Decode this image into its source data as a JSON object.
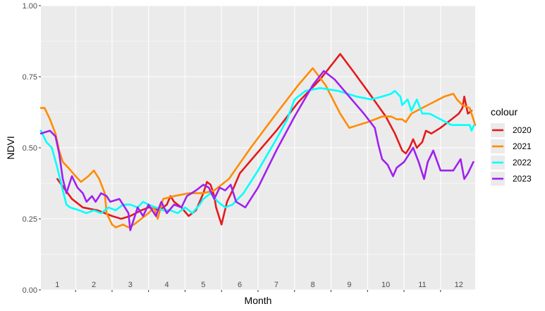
{
  "chart_data": {
    "type": "line",
    "xlabel": "Month",
    "ylabel": "NDVI",
    "xlim": [
      0.55,
      12.45
    ],
    "ylim": [
      0,
      1
    ],
    "x_tick_labels": [
      "1",
      "2",
      "3",
      "4",
      "5",
      "6",
      "7",
      "8",
      "9",
      "10",
      "11",
      "12"
    ],
    "y_ticks": [
      0,
      0.25,
      0.5,
      0.75,
      1
    ],
    "y_tick_labels": [
      "0.00",
      "0.25",
      "0.50",
      "0.75",
      "1.00"
    ],
    "grid": true,
    "panel_color": "#ebebeb",
    "legend": {
      "title": "colour",
      "placement": "right"
    },
    "series": [
      {
        "name": "2020",
        "color": "#e41a1c",
        "points": [
          [
            1.0,
            0.39
          ],
          [
            1.4,
            0.32
          ],
          [
            1.7,
            0.29
          ],
          [
            2.1,
            0.28
          ],
          [
            2.3,
            0.27
          ],
          [
            2.5,
            0.26
          ],
          [
            2.75,
            0.25
          ],
          [
            3.0,
            0.26
          ],
          [
            3.3,
            0.28
          ],
          [
            3.5,
            0.29
          ],
          [
            3.8,
            0.28
          ],
          [
            4.0,
            0.3
          ],
          [
            4.1,
            0.33
          ],
          [
            4.2,
            0.31
          ],
          [
            4.4,
            0.29
          ],
          [
            4.6,
            0.26
          ],
          [
            4.8,
            0.28
          ],
          [
            5.0,
            0.34
          ],
          [
            5.1,
            0.38
          ],
          [
            5.2,
            0.37
          ],
          [
            5.3,
            0.33
          ],
          [
            5.35,
            0.29
          ],
          [
            5.45,
            0.25
          ],
          [
            5.5,
            0.23
          ],
          [
            5.65,
            0.31
          ],
          [
            5.8,
            0.35
          ],
          [
            6.0,
            0.41
          ],
          [
            6.4,
            0.47
          ],
          [
            7.0,
            0.56
          ],
          [
            7.6,
            0.66
          ],
          [
            8.2,
            0.74
          ],
          [
            8.75,
            0.83
          ],
          [
            9.1,
            0.77
          ],
          [
            9.5,
            0.7
          ],
          [
            10.0,
            0.61
          ],
          [
            10.25,
            0.55
          ],
          [
            10.45,
            0.49
          ],
          [
            10.55,
            0.48
          ],
          [
            10.65,
            0.5
          ],
          [
            10.75,
            0.53
          ],
          [
            10.85,
            0.5
          ],
          [
            11.0,
            0.52
          ],
          [
            11.1,
            0.56
          ],
          [
            11.25,
            0.55
          ],
          [
            11.5,
            0.57
          ],
          [
            11.8,
            0.6
          ],
          [
            12.0,
            0.62
          ],
          [
            12.1,
            0.64
          ],
          [
            12.15,
            0.68
          ],
          [
            12.25,
            0.62
          ],
          [
            12.35,
            0.63
          ]
        ]
      },
      {
        "name": "2021",
        "color": "#ff8c00",
        "points": [
          [
            0.55,
            0.64
          ],
          [
            0.65,
            0.64
          ],
          [
            0.8,
            0.6
          ],
          [
            0.95,
            0.55
          ],
          [
            1.05,
            0.49
          ],
          [
            1.15,
            0.45
          ],
          [
            1.3,
            0.43
          ],
          [
            1.5,
            0.4
          ],
          [
            1.65,
            0.38
          ],
          [
            1.85,
            0.4
          ],
          [
            2.0,
            0.42
          ],
          [
            2.15,
            0.39
          ],
          [
            2.3,
            0.34
          ],
          [
            2.35,
            0.27
          ],
          [
            2.5,
            0.23
          ],
          [
            2.6,
            0.22
          ],
          [
            2.8,
            0.23
          ],
          [
            2.95,
            0.22
          ],
          [
            3.1,
            0.23
          ],
          [
            3.3,
            0.25
          ],
          [
            3.5,
            0.27
          ],
          [
            3.65,
            0.29
          ],
          [
            3.75,
            0.25
          ],
          [
            3.9,
            0.32
          ],
          [
            4.2,
            0.33
          ],
          [
            4.6,
            0.34
          ],
          [
            5.0,
            0.34
          ],
          [
            5.3,
            0.35
          ],
          [
            5.5,
            0.37
          ],
          [
            5.7,
            0.39
          ],
          [
            6.3,
            0.5
          ],
          [
            7.0,
            0.62
          ],
          [
            7.6,
            0.72
          ],
          [
            8.0,
            0.78
          ],
          [
            8.35,
            0.72
          ],
          [
            8.75,
            0.62
          ],
          [
            9.0,
            0.57
          ],
          [
            9.5,
            0.59
          ],
          [
            9.9,
            0.61
          ],
          [
            10.15,
            0.61
          ],
          [
            10.3,
            0.6
          ],
          [
            10.45,
            0.6
          ],
          [
            10.55,
            0.59
          ],
          [
            10.7,
            0.62
          ],
          [
            11.0,
            0.64
          ],
          [
            11.3,
            0.66
          ],
          [
            11.6,
            0.68
          ],
          [
            11.85,
            0.69
          ],
          [
            11.95,
            0.67
          ],
          [
            12.1,
            0.65
          ],
          [
            12.3,
            0.64
          ],
          [
            12.45,
            0.58
          ]
        ]
      },
      {
        "name": "2022",
        "color": "#00ffff",
        "points": [
          [
            0.55,
            0.56
          ],
          [
            0.7,
            0.52
          ],
          [
            0.85,
            0.5
          ],
          [
            1.0,
            0.43
          ],
          [
            1.15,
            0.35
          ],
          [
            1.25,
            0.3
          ],
          [
            1.35,
            0.29
          ],
          [
            1.6,
            0.28
          ],
          [
            1.8,
            0.27
          ],
          [
            2.0,
            0.28
          ],
          [
            2.2,
            0.27
          ],
          [
            2.4,
            0.29
          ],
          [
            2.6,
            0.28
          ],
          [
            2.8,
            0.3
          ],
          [
            3.0,
            0.3
          ],
          [
            3.2,
            0.29
          ],
          [
            3.35,
            0.31
          ],
          [
            3.5,
            0.3
          ],
          [
            3.7,
            0.29
          ],
          [
            3.9,
            0.28
          ],
          [
            4.1,
            0.28
          ],
          [
            4.3,
            0.27
          ],
          [
            4.5,
            0.29
          ],
          [
            4.7,
            0.27
          ],
          [
            4.9,
            0.3
          ],
          [
            5.0,
            0.32
          ],
          [
            5.2,
            0.34
          ],
          [
            5.4,
            0.31
          ],
          [
            5.6,
            0.29
          ],
          [
            5.8,
            0.3
          ],
          [
            6.1,
            0.34
          ],
          [
            6.5,
            0.42
          ],
          [
            7.0,
            0.53
          ],
          [
            7.3,
            0.6
          ],
          [
            7.5,
            0.67
          ],
          [
            7.8,
            0.7
          ],
          [
            8.2,
            0.71
          ],
          [
            8.7,
            0.7
          ],
          [
            9.2,
            0.68
          ],
          [
            9.6,
            0.67
          ],
          [
            9.9,
            0.68
          ],
          [
            10.15,
            0.69
          ],
          [
            10.25,
            0.7
          ],
          [
            10.4,
            0.68
          ],
          [
            10.45,
            0.65
          ],
          [
            10.6,
            0.67
          ],
          [
            10.7,
            0.63
          ],
          [
            10.85,
            0.67
          ],
          [
            11.0,
            0.62
          ],
          [
            11.2,
            0.62
          ],
          [
            11.5,
            0.6
          ],
          [
            11.8,
            0.58
          ],
          [
            12.0,
            0.58
          ],
          [
            12.3,
            0.58
          ],
          [
            12.35,
            0.56
          ],
          [
            12.42,
            0.58
          ]
        ]
      },
      {
        "name": "2023",
        "color": "#a020f0",
        "points": [
          [
            0.55,
            0.55
          ],
          [
            0.8,
            0.56
          ],
          [
            0.95,
            0.54
          ],
          [
            1.05,
            0.48
          ],
          [
            1.15,
            0.39
          ],
          [
            1.25,
            0.34
          ],
          [
            1.4,
            0.4
          ],
          [
            1.55,
            0.36
          ],
          [
            1.7,
            0.34
          ],
          [
            1.8,
            0.31
          ],
          [
            1.95,
            0.33
          ],
          [
            2.05,
            0.31
          ],
          [
            2.2,
            0.34
          ],
          [
            2.35,
            0.33
          ],
          [
            2.45,
            0.31
          ],
          [
            2.7,
            0.32
          ],
          [
            2.85,
            0.29
          ],
          [
            2.95,
            0.27
          ],
          [
            3.0,
            0.21
          ],
          [
            3.2,
            0.29
          ],
          [
            3.35,
            0.26
          ],
          [
            3.5,
            0.3
          ],
          [
            3.7,
            0.26
          ],
          [
            3.85,
            0.31
          ],
          [
            4.0,
            0.27
          ],
          [
            4.2,
            0.3
          ],
          [
            4.4,
            0.29
          ],
          [
            4.55,
            0.33
          ],
          [
            4.8,
            0.35
          ],
          [
            5.0,
            0.37
          ],
          [
            5.15,
            0.36
          ],
          [
            5.3,
            0.32
          ],
          [
            5.45,
            0.36
          ],
          [
            5.6,
            0.35
          ],
          [
            5.75,
            0.37
          ],
          [
            5.9,
            0.31
          ],
          [
            6.15,
            0.29
          ],
          [
            6.5,
            0.36
          ],
          [
            7.0,
            0.49
          ],
          [
            7.5,
            0.61
          ],
          [
            8.0,
            0.72
          ],
          [
            8.3,
            0.77
          ],
          [
            8.6,
            0.74
          ],
          [
            9.0,
            0.68
          ],
          [
            9.4,
            0.62
          ],
          [
            9.7,
            0.57
          ],
          [
            9.8,
            0.51
          ],
          [
            9.9,
            0.46
          ],
          [
            10.05,
            0.44
          ],
          [
            10.2,
            0.4
          ],
          [
            10.3,
            0.43
          ],
          [
            10.5,
            0.45
          ],
          [
            10.75,
            0.5
          ],
          [
            10.9,
            0.45
          ],
          [
            11.05,
            0.39
          ],
          [
            11.15,
            0.45
          ],
          [
            11.3,
            0.49
          ],
          [
            11.5,
            0.42
          ],
          [
            11.7,
            0.42
          ],
          [
            11.85,
            0.42
          ],
          [
            12.05,
            0.46
          ],
          [
            12.15,
            0.39
          ],
          [
            12.25,
            0.41
          ],
          [
            12.4,
            0.45
          ]
        ]
      }
    ]
  }
}
